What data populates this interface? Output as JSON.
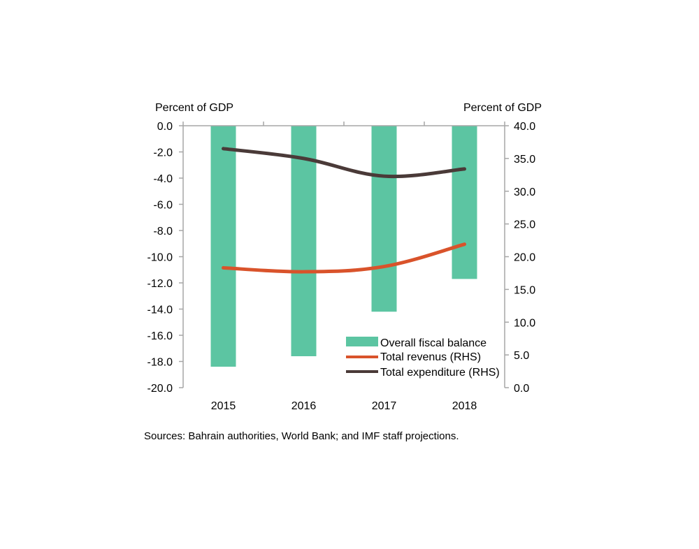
{
  "chart_data": {
    "type": "bar",
    "categories": [
      "2015",
      "2016",
      "2017",
      "2018"
    ],
    "left_axis": {
      "unit_label": "Percent of GDP",
      "range": [
        -20.0,
        0.0
      ],
      "ticks": [
        "0.0",
        "-2.0",
        "-4.0",
        "-6.0",
        "-8.0",
        "-10.0",
        "-12.0",
        "-14.0",
        "-16.0",
        "-18.0",
        "-20.0"
      ]
    },
    "right_axis": {
      "unit_label": "Percent of GDP",
      "range": [
        0.0,
        40.0
      ],
      "ticks": [
        "40.0",
        "35.0",
        "30.0",
        "25.0",
        "20.0",
        "15.0",
        "10.0",
        "5.0",
        "0.0"
      ]
    },
    "series": [
      {
        "name": "Overall fiscal balance",
        "type": "bar",
        "axis": "left",
        "color": "#5cc5a2",
        "values": [
          -18.4,
          -17.6,
          -14.2,
          -11.7
        ]
      },
      {
        "name": "Total revenus (RHS)",
        "type": "line",
        "axis": "right",
        "color": "#d9532b",
        "values": [
          18.3,
          17.7,
          18.5,
          21.9
        ]
      },
      {
        "name": "Total expenditure (RHS)",
        "type": "line",
        "axis": "right",
        "color": "#4a3a38",
        "values": [
          36.5,
          35.0,
          32.3,
          33.4
        ]
      }
    ],
    "legend_position": "bottom-right inside plot",
    "grid": false,
    "source_note": "Sources: Bahrain authorities, World Bank; and IMF staff projections."
  }
}
